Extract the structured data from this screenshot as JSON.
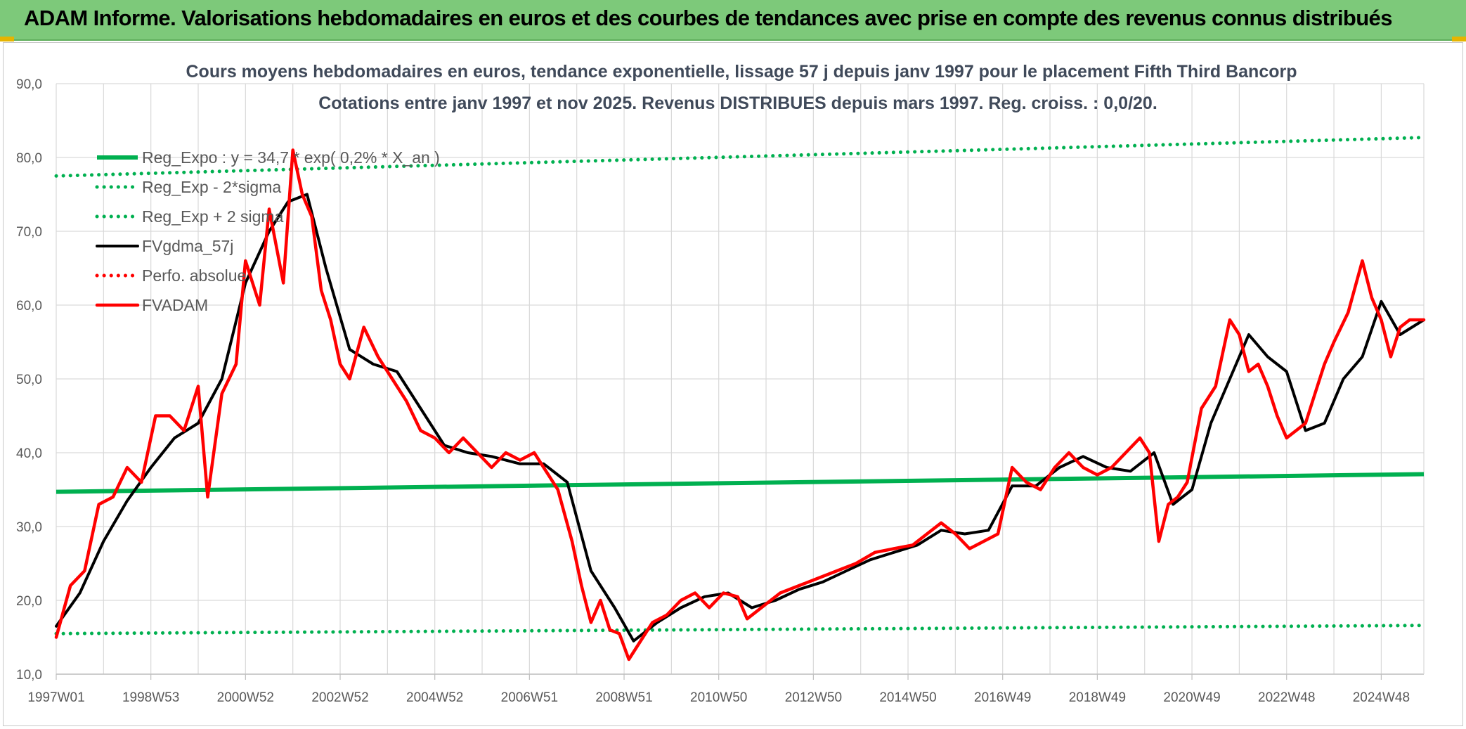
{
  "banner": {
    "title": "ADAM Informe. Valorisations hebdomadaires en euros et des courbes de tendances avec prise en compte des revenus connus distribués"
  },
  "colors": {
    "banner_bg": "#7dc97a",
    "green": "#00b050",
    "black": "#000000",
    "red": "#ff0000",
    "grid": "#d9d9d9"
  },
  "chart_data": {
    "type": "line",
    "title": "Cours moyens hebdomadaires en euros, tendance exponentielle, lissage 57 j depuis janv 1997 pour le placement Fifth Third Bancorp",
    "subtitle": "Cotations entre janv 1997 et nov 2025. Revenus DISTRIBUES depuis mars 1997. Reg. croiss. : 0,0/20.",
    "xlabel": "",
    "ylabel": "",
    "xlim": [
      1997.0,
      2025.9
    ],
    "ylim": [
      10,
      90
    ],
    "y_ticks": [
      "10,0",
      "20,0",
      "30,0",
      "40,0",
      "50,0",
      "60,0",
      "70,0",
      "80,0",
      "90,0"
    ],
    "x_ticks": [
      {
        "label": "1997W01",
        "x": 1997.0
      },
      {
        "label": "1998W53",
        "x": 1999.0
      },
      {
        "label": "2000W52",
        "x": 2001.0
      },
      {
        "label": "2002W52",
        "x": 2003.0
      },
      {
        "label": "2004W52",
        "x": 2005.0
      },
      {
        "label": "2006W51",
        "x": 2007.0
      },
      {
        "label": "2008W51",
        "x": 2009.0
      },
      {
        "label": "2010W50",
        "x": 2011.0
      },
      {
        "label": "2012W50",
        "x": 2013.0
      },
      {
        "label": "2014W50",
        "x": 2015.0
      },
      {
        "label": "2016W49",
        "x": 2017.0
      },
      {
        "label": "2018W49",
        "x": 2019.0
      },
      {
        "label": "2020W49",
        "x": 2021.0
      },
      {
        "label": "2022W48",
        "x": 2023.0
      },
      {
        "label": "2024W48",
        "x": 2025.0
      }
    ],
    "legend_position": "top-left",
    "series": [
      {
        "name": "Reg_Expo : y = 34,7 * exp( 0,2% * X_an )",
        "style": "solid",
        "color": "#00b050",
        "x": [
          1997.0,
          2025.9
        ],
        "values": [
          34.7,
          37.1
        ]
      },
      {
        "name": "Reg_Exp - 2*sigma",
        "style": "dotted",
        "color": "#00b050",
        "x": [
          1997.0,
          2025.9
        ],
        "values": [
          15.5,
          16.6
        ]
      },
      {
        "name": "Reg_Exp + 2 sigma",
        "style": "dotted",
        "color": "#00b050",
        "x": [
          1997.0,
          2025.9
        ],
        "values": [
          77.5,
          82.7
        ]
      },
      {
        "name": "FVgdma_57j",
        "style": "solid",
        "color": "#000000",
        "x": [
          1997.0,
          1997.5,
          1998.0,
          1998.5,
          1999.0,
          1999.5,
          2000.0,
          2000.5,
          2001.0,
          2001.5,
          2001.9,
          2002.3,
          2002.7,
          2003.2,
          2003.7,
          2004.2,
          2004.7,
          2005.2,
          2005.7,
          2006.2,
          2006.8,
          2007.3,
          2007.8,
          2008.3,
          2008.8,
          2009.2,
          2009.7,
          2010.2,
          2010.7,
          2011.2,
          2011.7,
          2012.2,
          2012.7,
          2013.2,
          2013.7,
          2014.2,
          2014.7,
          2015.2,
          2015.7,
          2016.2,
          2016.7,
          2017.2,
          2017.7,
          2018.2,
          2018.7,
          2019.2,
          2019.7,
          2020.2,
          2020.6,
          2021.0,
          2021.4,
          2021.8,
          2022.2,
          2022.6,
          2023.0,
          2023.4,
          2023.8,
          2024.2,
          2024.6,
          2025.0,
          2025.4,
          2025.9
        ],
        "values": [
          16.5,
          21.0,
          28.0,
          33.5,
          38.0,
          42.0,
          44.0,
          50.0,
          63.0,
          70.0,
          74.0,
          75.0,
          65.0,
          54.0,
          52.0,
          51.0,
          46.0,
          41.0,
          40.0,
          39.5,
          38.5,
          38.5,
          36.0,
          24.0,
          19.0,
          14.5,
          17.0,
          19.0,
          20.5,
          21.0,
          19.0,
          20.0,
          21.5,
          22.5,
          24.0,
          25.5,
          26.5,
          27.5,
          29.5,
          29.0,
          29.5,
          35.5,
          35.5,
          38.0,
          39.5,
          38.0,
          37.5,
          40.0,
          33.0,
          35.0,
          44.0,
          50.0,
          56.0,
          53.0,
          51.0,
          43.0,
          44.0,
          50.0,
          53.0,
          60.5,
          56.0,
          58.0
        ]
      },
      {
        "name": "Perfo. absolue",
        "style": "dotted",
        "color": "#ff0000",
        "x": [],
        "values": []
      },
      {
        "name": "FVADAM",
        "style": "solid",
        "color": "#ff0000",
        "x": [
          1997.0,
          1997.3,
          1997.6,
          1997.9,
          1998.2,
          1998.5,
          1998.8,
          1999.1,
          1999.4,
          1999.7,
          2000.0,
          2000.2,
          2000.5,
          2000.8,
          2001.0,
          2001.3,
          2001.5,
          2001.8,
          2002.0,
          2002.2,
          2002.4,
          2002.6,
          2002.8,
          2003.0,
          2003.2,
          2003.5,
          2003.8,
          2004.1,
          2004.4,
          2004.7,
          2005.0,
          2005.3,
          2005.6,
          2005.9,
          2006.2,
          2006.5,
          2006.8,
          2007.1,
          2007.3,
          2007.6,
          2007.9,
          2008.1,
          2008.3,
          2008.5,
          2008.7,
          2008.9,
          2009.1,
          2009.3,
          2009.6,
          2009.9,
          2010.2,
          2010.5,
          2010.8,
          2011.1,
          2011.4,
          2011.6,
          2011.9,
          2012.3,
          2012.7,
          2013.1,
          2013.5,
          2013.9,
          2014.3,
          2014.7,
          2015.1,
          2015.4,
          2015.7,
          2016.0,
          2016.3,
          2016.6,
          2016.9,
          2017.2,
          2017.5,
          2017.8,
          2018.1,
          2018.4,
          2018.7,
          2019.0,
          2019.3,
          2019.6,
          2019.9,
          2020.1,
          2020.3,
          2020.5,
          2020.7,
          2020.9,
          2021.2,
          2021.5,
          2021.8,
          2022.0,
          2022.2,
          2022.4,
          2022.6,
          2022.8,
          2023.0,
          2023.2,
          2023.4,
          2023.6,
          2023.8,
          2024.0,
          2024.3,
          2024.6,
          2024.8,
          2025.0,
          2025.2,
          2025.4,
          2025.6,
          2025.9
        ],
        "values": [
          15.0,
          22.0,
          24.0,
          33.0,
          34.0,
          38.0,
          36.0,
          45.0,
          45.0,
          43.0,
          49.0,
          34.0,
          48.0,
          52.0,
          66.0,
          60.0,
          73.0,
          63.0,
          81.0,
          75.0,
          72.0,
          62.0,
          58.0,
          52.0,
          50.0,
          57.0,
          53.0,
          50.0,
          47.0,
          43.0,
          42.0,
          40.0,
          42.0,
          40.0,
          38.0,
          40.0,
          39.0,
          40.0,
          38.0,
          35.0,
          28.0,
          22.0,
          17.0,
          20.0,
          16.0,
          15.5,
          12.0,
          14.0,
          17.0,
          18.0,
          20.0,
          21.0,
          19.0,
          21.0,
          20.5,
          17.5,
          19.0,
          21.0,
          22.0,
          23.0,
          24.0,
          25.0,
          26.5,
          27.0,
          27.5,
          29.0,
          30.5,
          29.0,
          27.0,
          28.0,
          29.0,
          38.0,
          36.0,
          35.0,
          38.0,
          40.0,
          38.0,
          37.0,
          38.0,
          40.0,
          42.0,
          40.0,
          28.0,
          33.0,
          34.0,
          36.0,
          46.0,
          49.0,
          58.0,
          56.0,
          51.0,
          52.0,
          49.0,
          45.0,
          42.0,
          43.0,
          44.0,
          48.0,
          52.0,
          55.0,
          59.0,
          66.0,
          61.0,
          58.0,
          53.0,
          57.0,
          58.0,
          58.0
        ]
      }
    ]
  }
}
